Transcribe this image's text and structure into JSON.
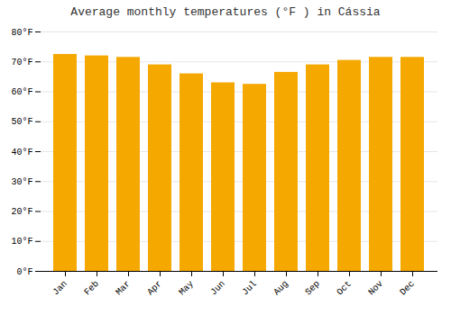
{
  "chart_data": {
    "type": "bar",
    "title": "Average monthly temperatures (°F ) in Cássia",
    "categories": [
      "Jan",
      "Feb",
      "Mar",
      "Apr",
      "May",
      "Jun",
      "Jul",
      "Aug",
      "Sep",
      "Oct",
      "Nov",
      "Dec"
    ],
    "values": [
      72.5,
      72.0,
      71.5,
      69.0,
      66.0,
      63.0,
      62.5,
      66.5,
      69.0,
      70.5,
      71.5,
      71.5
    ],
    "color": "#F5A800",
    "ylim": [
      0,
      80
    ],
    "yticks": [
      {
        "value": 0,
        "label": "0°F"
      },
      {
        "value": 10,
        "label": "10°F"
      },
      {
        "value": 20,
        "label": "20°F"
      },
      {
        "value": 30,
        "label": "30°F"
      },
      {
        "value": 40,
        "label": "40°F"
      },
      {
        "value": 50,
        "label": "50°F"
      },
      {
        "value": 60,
        "label": "60°F"
      },
      {
        "value": 70,
        "label": "70°F"
      },
      {
        "value": 80,
        "label": "80°F"
      }
    ],
    "grid": true
  }
}
